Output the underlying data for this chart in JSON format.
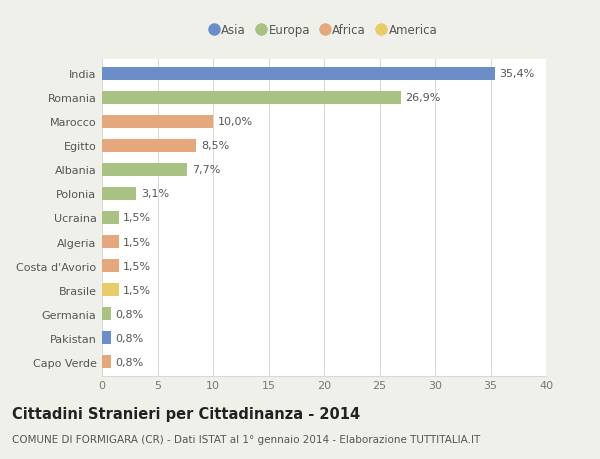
{
  "countries": [
    "India",
    "Romania",
    "Marocco",
    "Egitto",
    "Albania",
    "Polonia",
    "Ucraina",
    "Algeria",
    "Costa d'Avorio",
    "Brasile",
    "Germania",
    "Pakistan",
    "Capo Verde"
  ],
  "values": [
    35.4,
    26.9,
    10.0,
    8.5,
    7.7,
    3.1,
    1.5,
    1.5,
    1.5,
    1.5,
    0.8,
    0.8,
    0.8
  ],
  "labels": [
    "35,4%",
    "26,9%",
    "10,0%",
    "8,5%",
    "7,7%",
    "3,1%",
    "1,5%",
    "1,5%",
    "1,5%",
    "1,5%",
    "0,8%",
    "0,8%",
    "0,8%"
  ],
  "continents": [
    "Asia",
    "Europa",
    "Africa",
    "Africa",
    "Europa",
    "Europa",
    "Europa",
    "Africa",
    "Africa",
    "America",
    "Europa",
    "Asia",
    "Africa"
  ],
  "colors": {
    "Asia": "#6b8ec9",
    "Europa": "#a9c183",
    "Africa": "#e5a87c",
    "America": "#e8cc6a"
  },
  "legend_order": [
    "Asia",
    "Europa",
    "Africa",
    "America"
  ],
  "xlim": [
    0,
    40
  ],
  "xticks": [
    0,
    5,
    10,
    15,
    20,
    25,
    30,
    35,
    40
  ],
  "title": "Cittadini Stranieri per Cittadinanza - 2014",
  "subtitle": "COMUNE DI FORMIGARA (CR) - Dati ISTAT al 1° gennaio 2014 - Elaborazione TUTTITALIA.IT",
  "bg_color": "#f0f0eb",
  "plot_bg_color": "#ffffff",
  "grid_color": "#d8d8d8",
  "title_fontsize": 10.5,
  "subtitle_fontsize": 7.5,
  "label_fontsize": 8,
  "tick_fontsize": 8,
  "bar_height": 0.55
}
